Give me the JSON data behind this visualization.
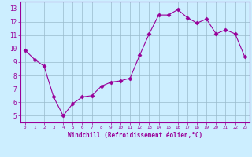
{
  "x": [
    0,
    1,
    2,
    3,
    4,
    5,
    6,
    7,
    8,
    9,
    10,
    11,
    12,
    13,
    14,
    15,
    16,
    17,
    18,
    19,
    20,
    21,
    22,
    23
  ],
  "y": [
    9.9,
    9.2,
    8.7,
    6.4,
    5.0,
    5.9,
    6.4,
    6.5,
    7.2,
    7.5,
    7.6,
    7.8,
    9.5,
    11.1,
    12.5,
    12.5,
    12.9,
    12.3,
    11.9,
    12.2,
    11.1,
    11.4,
    11.1,
    9.4
  ],
  "line_color": "#990099",
  "marker": "D",
  "marker_size": 2.5,
  "bg_color": "#cceeff",
  "grid_color": "#99bbcc",
  "xlabel": "Windchill (Refroidissement éolien,°C)",
  "xlabel_color": "#990099",
  "tick_color": "#990099",
  "axis_line_color": "#990099",
  "ylim": [
    4.5,
    13.5
  ],
  "yticks": [
    5,
    6,
    7,
    8,
    9,
    10,
    11,
    12,
    13
  ],
  "xticks": [
    0,
    1,
    2,
    3,
    4,
    5,
    6,
    7,
    8,
    9,
    10,
    11,
    12,
    13,
    14,
    15,
    16,
    17,
    18,
    19,
    20,
    21,
    22,
    23
  ]
}
